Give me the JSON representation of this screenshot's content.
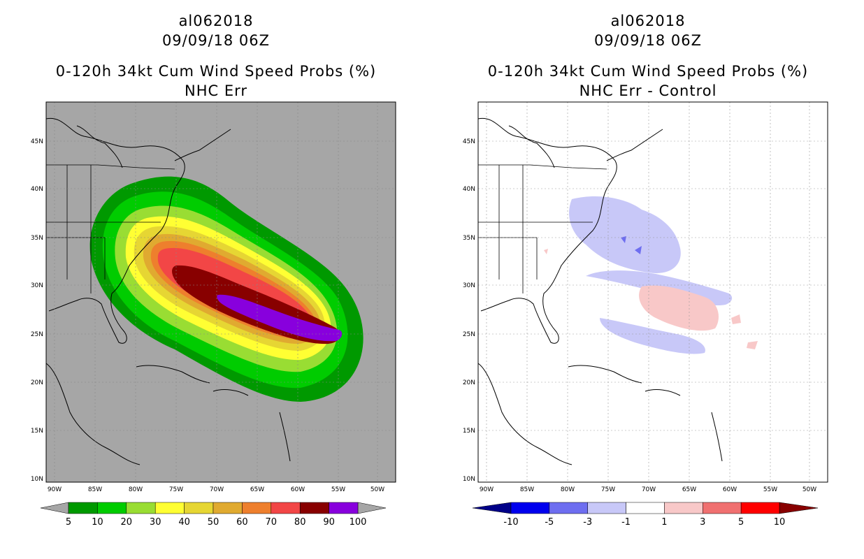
{
  "left": {
    "storm_id": "al062018",
    "datetime": "09/09/18 06Z",
    "product": "0-120h 34kt Cum Wind Speed Probs (%)",
    "subtitle": "NHC Err",
    "colorbar": {
      "labels": [
        "5",
        "10",
        "20",
        "30",
        "40",
        "50",
        "60",
        "70",
        "80",
        "90",
        "100"
      ],
      "colors": [
        "#009900",
        "#00cc00",
        "#99dd33",
        "#ffff33",
        "#e6d633",
        "#e0aa30",
        "#ee7f2d",
        "#f24646",
        "#880000",
        "#8800dd"
      ],
      "under_color": "#a6a6a6",
      "over_color": "#a6a6a6"
    }
  },
  "right": {
    "storm_id": "al062018",
    "datetime": "09/09/18 06Z",
    "product": "0-120h 34kt Cum Wind Speed Probs (%)",
    "subtitle": "NHC Err - Control",
    "colorbar": {
      "labels": [
        "-10",
        "-5",
        "-3",
        "-1",
        "1",
        "3",
        "5",
        "10"
      ],
      "colors": [
        "#0000ee",
        "#6e6ef0",
        "#c8c8f8",
        "#ffffff",
        "#f8c8c8",
        "#f07070",
        "#ff0000"
      ],
      "under_color": "#000088",
      "over_color": "#880000"
    }
  },
  "axes": {
    "lon_labels": [
      "90W",
      "85W",
      "80W",
      "75W",
      "70W",
      "65W",
      "60W",
      "55W",
      "50W"
    ],
    "lat_labels": [
      "45N",
      "40N",
      "35N",
      "30N",
      "25N",
      "20N",
      "15N",
      "10N"
    ]
  },
  "map_background": {
    "left": "#a6a6a6",
    "right": "#ffffff"
  }
}
